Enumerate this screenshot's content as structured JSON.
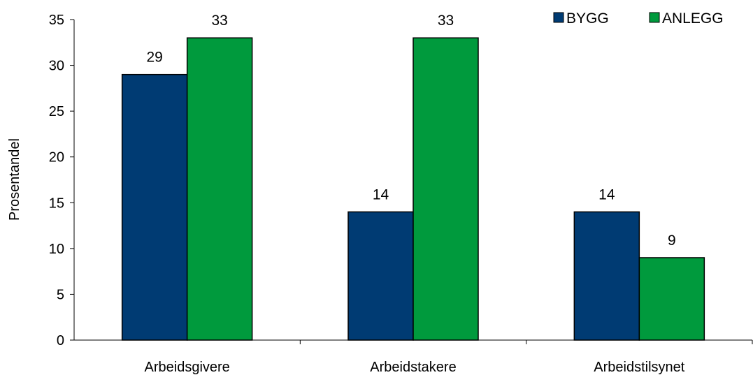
{
  "chart_data": {
    "type": "bar",
    "categories": [
      "Arbeidsgivere",
      "Arbeidstakere",
      "Arbeidstilsynet"
    ],
    "series": [
      {
        "name": "BYGG",
        "values": [
          29,
          14,
          14
        ],
        "color": "#003b73"
      },
      {
        "name": "ANLEGG",
        "values": [
          33,
          33,
          9
        ],
        "color": "#009a3d"
      }
    ],
    "ylabel": "Prosentandel",
    "xlabel": "",
    "ylim": [
      0,
      35
    ],
    "yticks": [
      0,
      5,
      10,
      15,
      20,
      25,
      30,
      35
    ],
    "grid": false,
    "legend": "top-right",
    "data_labels": true
  }
}
